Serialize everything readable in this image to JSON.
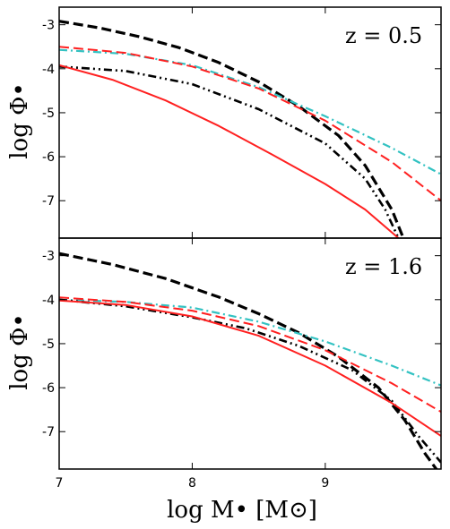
{
  "chart_data": [
    {
      "type": "line",
      "panel_label": "z = 0.5",
      "xlabel": "log M• [M⊙]",
      "ylabel": "log Φ•",
      "xlim": [
        7.0,
        9.87
      ],
      "ylim": [
        -7.85,
        -2.6
      ],
      "xticks": [
        7,
        8,
        9
      ],
      "yticks": [
        -3,
        -4,
        -5,
        -6,
        -7
      ],
      "series": [
        {
          "color": "#000000",
          "dash": "dashed",
          "width": 3.2,
          "x": [
            7.0,
            7.3,
            7.6,
            7.9,
            8.2,
            8.5,
            8.8,
            9.1,
            9.3,
            9.5,
            9.6
          ],
          "y": [
            -2.92,
            -3.07,
            -3.27,
            -3.52,
            -3.86,
            -4.3,
            -4.85,
            -5.52,
            -6.2,
            -7.2,
            -7.95
          ]
        },
        {
          "color": "#33c2c2",
          "dash": "dashdot",
          "width": 2.2,
          "x": [
            7.0,
            7.5,
            8.0,
            8.5,
            9.0,
            9.5,
            9.87
          ],
          "y": [
            -3.57,
            -3.66,
            -3.92,
            -4.42,
            -5.08,
            -5.8,
            -6.4
          ]
        },
        {
          "color": "#ff2020",
          "dash": "dashed",
          "width": 2.0,
          "x": [
            7.0,
            7.5,
            8.0,
            8.5,
            9.0,
            9.5,
            9.87
          ],
          "y": [
            -3.5,
            -3.64,
            -3.95,
            -4.45,
            -5.18,
            -6.12,
            -7.0
          ]
        },
        {
          "color": "#000000",
          "dash": "dashdotdot",
          "width": 2.6,
          "x": [
            7.0,
            7.5,
            8.0,
            8.5,
            9.0,
            9.3,
            9.45,
            9.55
          ],
          "y": [
            -3.95,
            -4.05,
            -4.35,
            -4.92,
            -5.7,
            -6.5,
            -7.2,
            -7.85
          ]
        },
        {
          "color": "#ff2020",
          "dash": "solid",
          "width": 2.0,
          "x": [
            7.0,
            7.4,
            7.8,
            8.2,
            8.6,
            9.0,
            9.3,
            9.55
          ],
          "y": [
            -3.92,
            -4.25,
            -4.72,
            -5.3,
            -5.95,
            -6.62,
            -7.2,
            -7.85
          ]
        }
      ]
    },
    {
      "type": "line",
      "panel_label": "z = 1.6",
      "xlabel": "log M• [M⊙]",
      "ylabel": "log Φ•",
      "xlim": [
        7.0,
        9.87
      ],
      "ylim": [
        -7.85,
        -2.6
      ],
      "xticks": [
        7,
        8,
        9
      ],
      "yticks": [
        -3,
        -4,
        -5,
        -6,
        -7
      ],
      "series": [
        {
          "color": "#000000",
          "dash": "dashed",
          "width": 3.2,
          "x": [
            7.0,
            7.4,
            7.8,
            8.2,
            8.5,
            8.8,
            9.1,
            9.4,
            9.6,
            9.75,
            9.87
          ],
          "y": [
            -2.95,
            -3.2,
            -3.52,
            -3.94,
            -4.32,
            -4.75,
            -5.3,
            -6.0,
            -6.75,
            -7.5,
            -8.0
          ]
        },
        {
          "color": "#33c2c2",
          "dash": "dashdot",
          "width": 2.2,
          "x": [
            7.0,
            7.5,
            8.0,
            8.5,
            9.0,
            9.5,
            9.87
          ],
          "y": [
            -4.0,
            -4.05,
            -4.18,
            -4.5,
            -4.95,
            -5.5,
            -5.95
          ]
        },
        {
          "color": "#ff2020",
          "dash": "dashed",
          "width": 2.0,
          "x": [
            7.0,
            7.5,
            8.0,
            8.5,
            9.0,
            9.5,
            9.87
          ],
          "y": [
            -3.95,
            -4.05,
            -4.25,
            -4.6,
            -5.15,
            -5.9,
            -6.55
          ]
        },
        {
          "color": "#000000",
          "dash": "dashdotdot",
          "width": 2.6,
          "x": [
            7.0,
            7.5,
            8.0,
            8.4,
            8.8,
            9.2,
            9.5,
            9.7,
            9.87
          ],
          "y": [
            -4.0,
            -4.15,
            -4.4,
            -4.65,
            -5.05,
            -5.6,
            -6.3,
            -7.1,
            -7.7
          ]
        },
        {
          "color": "#ff2020",
          "dash": "solid",
          "width": 2.0,
          "x": [
            7.0,
            7.5,
            8.0,
            8.5,
            9.0,
            9.5,
            9.87
          ],
          "y": [
            -4.02,
            -4.12,
            -4.38,
            -4.82,
            -5.5,
            -6.35,
            -7.1
          ]
        }
      ]
    }
  ]
}
